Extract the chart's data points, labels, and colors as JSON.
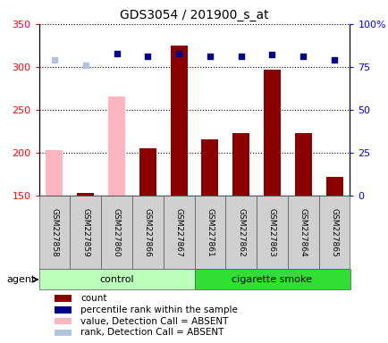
{
  "title": "GDS3054 / 201900_s_at",
  "samples": [
    "GSM227858",
    "GSM227859",
    "GSM227860",
    "GSM227866",
    "GSM227867",
    "GSM227861",
    "GSM227862",
    "GSM227863",
    "GSM227864",
    "GSM227865"
  ],
  "bar_values": [
    203,
    153,
    265,
    205,
    325,
    215,
    223,
    297,
    223,
    172
  ],
  "bar_absent": [
    true,
    false,
    true,
    false,
    false,
    false,
    false,
    false,
    false,
    false
  ],
  "rank_values": [
    79,
    76,
    83,
    81,
    83,
    81,
    81,
    82,
    81,
    79
  ],
  "rank_absent": [
    true,
    true,
    false,
    false,
    false,
    false,
    false,
    false,
    false,
    false
  ],
  "ylim_left": [
    150,
    350
  ],
  "ylim_right": [
    0,
    100
  ],
  "yticks_left": [
    150,
    200,
    250,
    300,
    350
  ],
  "yticks_right": [
    0,
    25,
    50,
    75,
    100
  ],
  "ytick_labels_right": [
    "0",
    "25",
    "50",
    "75",
    "100%"
  ],
  "color_bar_present": "#8B0000",
  "color_bar_absent": "#FFB6C1",
  "color_rank_present": "#00008B",
  "color_rank_absent": "#B0C4DE",
  "group_light": "#bbffbb",
  "group_dark": "#33dd33",
  "legend_items": [
    {
      "color": "#8B0000",
      "label": "count"
    },
    {
      "color": "#00008B",
      "label": "percentile rank within the sample"
    },
    {
      "color": "#FFB6C1",
      "label": "value, Detection Call = ABSENT"
    },
    {
      "color": "#B0C4DE",
      "label": "rank, Detection Call = ABSENT"
    }
  ],
  "agent_label": "agent",
  "xlabel_control": "control",
  "xlabel_cigarette": "cigarette smoke",
  "control_indices": [
    0,
    1,
    2,
    3,
    4
  ],
  "smoke_indices": [
    5,
    6,
    7,
    8,
    9
  ],
  "figsize": [
    4.35,
    3.84
  ],
  "dpi": 100
}
